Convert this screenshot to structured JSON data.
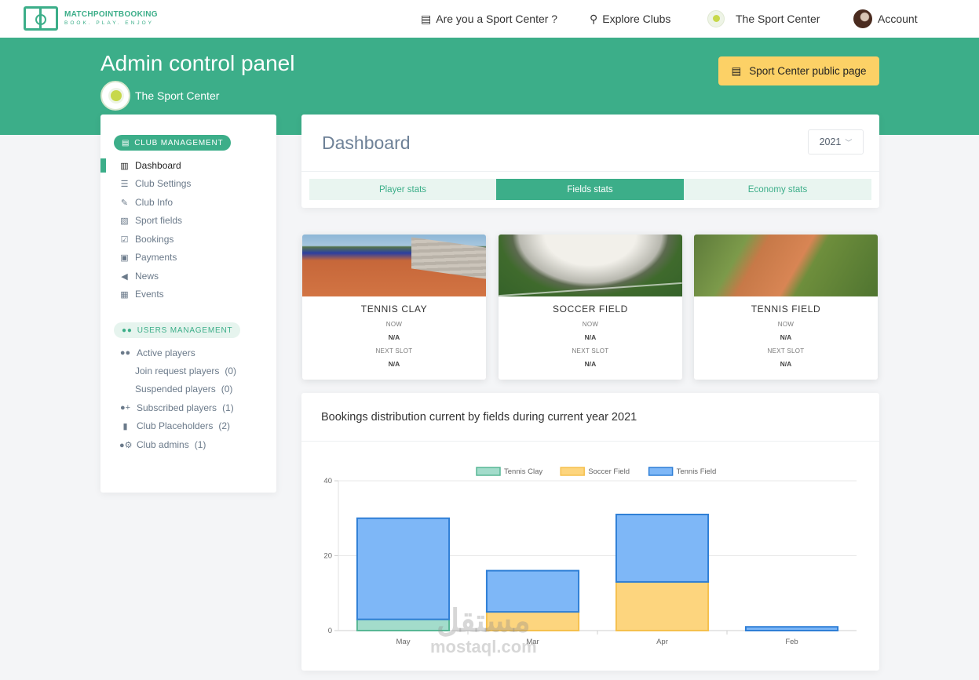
{
  "brand": {
    "name": "MATCHPOINTBOOKING",
    "tagline": "BOOK. PLAY. ENJOY"
  },
  "nav": {
    "sport_center_q": "Are you a Sport Center ?",
    "explore": "Explore Clubs",
    "club": "The Sport Center",
    "account": "Account"
  },
  "header": {
    "title": "Admin control panel",
    "club_name": "The Sport Center",
    "public_page_button": "Sport Center public page"
  },
  "sidebar": {
    "club_section": "CLUB MANAGEMENT",
    "club_items": [
      {
        "label": "Dashboard",
        "icon": "chart-icon"
      },
      {
        "label": "Club Settings",
        "icon": "sliders-icon"
      },
      {
        "label": "Club Info",
        "icon": "edit-icon"
      },
      {
        "label": "Sport fields",
        "icon": "images-icon"
      },
      {
        "label": "Bookings",
        "icon": "calendar-check-icon"
      },
      {
        "label": "Payments",
        "icon": "money-icon"
      },
      {
        "label": "News",
        "icon": "megaphone-icon"
      },
      {
        "label": "Events",
        "icon": "calendar-icon"
      }
    ],
    "users_section": "USERS MANAGEMENT",
    "user_items": [
      {
        "label": "Active players",
        "count": ""
      },
      {
        "label": "Join request players",
        "count": "(0)"
      },
      {
        "label": "Suspended players",
        "count": "(0)"
      },
      {
        "label": "Subscribed players",
        "count": "(1)"
      },
      {
        "label": "Club Placeholders",
        "count": "(2)"
      },
      {
        "label": "Club admins",
        "count": "(1)"
      }
    ]
  },
  "dashboard": {
    "title": "Dashboard",
    "year": "2021",
    "tabs": [
      "Player stats",
      "Fields stats",
      "Economy stats"
    ],
    "active_tab": "Fields stats"
  },
  "fields": [
    {
      "name": "TENNIS CLAY",
      "now_label": "NOW",
      "now_value": "N/A",
      "next_label": "NEXT SLOT",
      "next_value": "N/A"
    },
    {
      "name": "SOCCER FIELD",
      "now_label": "NOW",
      "now_value": "N/A",
      "next_label": "NEXT SLOT",
      "next_value": "N/A"
    },
    {
      "name": "TENNIS FIELD",
      "now_label": "NOW",
      "now_value": "N/A",
      "next_label": "NEXT SLOT",
      "next_value": "N/A"
    }
  ],
  "chart": {
    "title": "Bookings distribution current by fields during current year 2021"
  },
  "chart_data": {
    "type": "bar",
    "stacked": true,
    "categories": [
      "May",
      "Mar",
      "Apr",
      "Feb"
    ],
    "series": [
      {
        "name": "Tennis Clay",
        "values": [
          3,
          0,
          0,
          0
        ],
        "color": "#a3dccb",
        "border": "#58b795"
      },
      {
        "name": "Soccer Field",
        "values": [
          0,
          5,
          13,
          0
        ],
        "color": "#fdd57e",
        "border": "#f5c04e"
      },
      {
        "name": "Tennis Field",
        "values": [
          27,
          11,
          18,
          1
        ],
        "color": "#7eb7f7",
        "border": "#2f7fd6"
      }
    ],
    "ylim": [
      0,
      40
    ],
    "yticks": [
      0,
      20,
      40
    ],
    "legend": "top",
    "grid": true
  },
  "watermark": {
    "arabic": "مستقل",
    "latin": "mostaql.com"
  }
}
